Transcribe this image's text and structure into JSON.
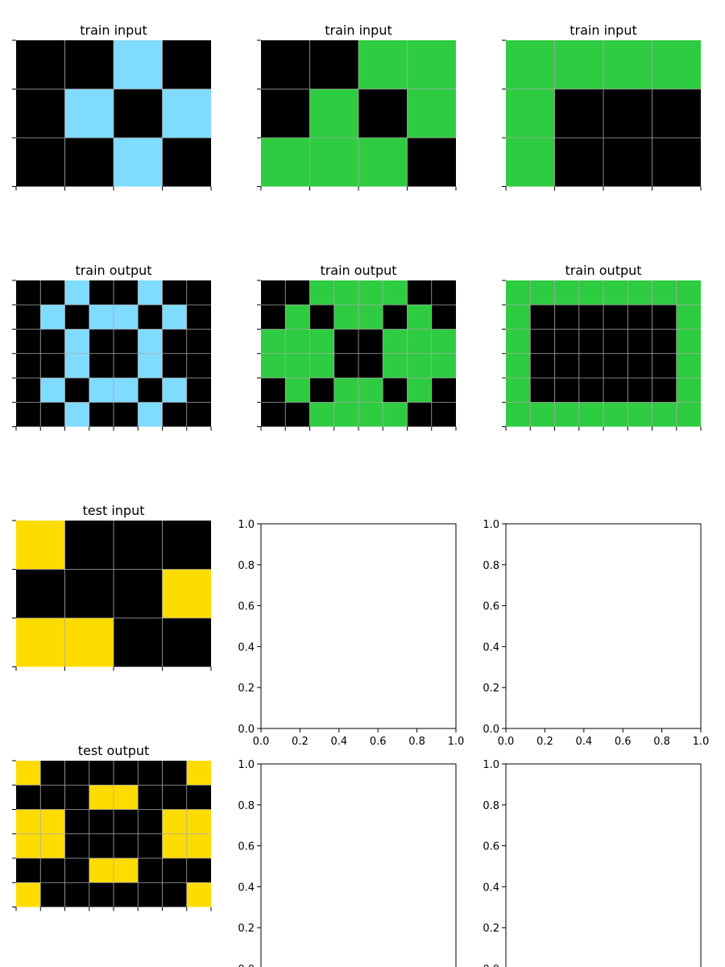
{
  "colors": {
    "0": "#000000",
    "3": "#2ECC40",
    "4": "#FFDC00",
    "8": "#7FDBFF",
    "grid": "#aaaaaa",
    "axis": "#000000",
    "background": "#ffffff"
  },
  "empty_tick_labels": [
    "0.0",
    "0.2",
    "0.4",
    "0.6",
    "0.8",
    "1.0"
  ],
  "chart_data": [
    {
      "type": "heatmap",
      "title": "train input",
      "row": 0,
      "col": 0,
      "grid": [
        [
          0,
          0,
          8,
          0
        ],
        [
          0,
          8,
          0,
          8
        ],
        [
          0,
          0,
          8,
          0
        ]
      ]
    },
    {
      "type": "heatmap",
      "title": "train input",
      "row": 0,
      "col": 1,
      "grid": [
        [
          0,
          0,
          3,
          3
        ],
        [
          0,
          3,
          0,
          3
        ],
        [
          3,
          3,
          3,
          0
        ]
      ]
    },
    {
      "type": "heatmap",
      "title": "train input",
      "row": 0,
      "col": 2,
      "grid": [
        [
          3,
          3,
          3,
          3
        ],
        [
          3,
          0,
          0,
          0
        ],
        [
          3,
          0,
          0,
          0
        ]
      ]
    },
    {
      "type": "heatmap",
      "title": "train output",
      "row": 1,
      "col": 0,
      "grid": [
        [
          0,
          0,
          8,
          0,
          0,
          8,
          0,
          0
        ],
        [
          0,
          8,
          0,
          8,
          8,
          0,
          8,
          0
        ],
        [
          0,
          0,
          8,
          0,
          0,
          8,
          0,
          0
        ],
        [
          0,
          0,
          8,
          0,
          0,
          8,
          0,
          0
        ],
        [
          0,
          8,
          0,
          8,
          8,
          0,
          8,
          0
        ],
        [
          0,
          0,
          8,
          0,
          0,
          8,
          0,
          0
        ]
      ]
    },
    {
      "type": "heatmap",
      "title": "train output",
      "row": 1,
      "col": 1,
      "grid": [
        [
          0,
          0,
          3,
          3,
          3,
          3,
          0,
          0
        ],
        [
          0,
          3,
          0,
          3,
          3,
          0,
          3,
          0
        ],
        [
          3,
          3,
          3,
          0,
          0,
          3,
          3,
          3
        ],
        [
          3,
          3,
          3,
          0,
          0,
          3,
          3,
          3
        ],
        [
          0,
          3,
          0,
          3,
          3,
          0,
          3,
          0
        ],
        [
          0,
          0,
          3,
          3,
          3,
          3,
          0,
          0
        ]
      ]
    },
    {
      "type": "heatmap",
      "title": "train output",
      "row": 1,
      "col": 2,
      "grid": [
        [
          3,
          3,
          3,
          3,
          3,
          3,
          3,
          3
        ],
        [
          3,
          0,
          0,
          0,
          0,
          0,
          0,
          3
        ],
        [
          3,
          0,
          0,
          0,
          0,
          0,
          0,
          3
        ],
        [
          3,
          0,
          0,
          0,
          0,
          0,
          0,
          3
        ],
        [
          3,
          0,
          0,
          0,
          0,
          0,
          0,
          3
        ],
        [
          3,
          3,
          3,
          3,
          3,
          3,
          3,
          3
        ]
      ]
    },
    {
      "type": "heatmap",
      "title": "test input",
      "row": 2,
      "col": 0,
      "grid": [
        [
          4,
          0,
          0,
          0
        ],
        [
          0,
          0,
          0,
          4
        ],
        [
          4,
          4,
          0,
          0
        ]
      ]
    },
    {
      "type": "empty",
      "title": "",
      "row": 2,
      "col": 1,
      "xlim": [
        0,
        1
      ],
      "ylim": [
        0,
        1
      ]
    },
    {
      "type": "empty",
      "title": "",
      "row": 2,
      "col": 2,
      "xlim": [
        0,
        1
      ],
      "ylim": [
        0,
        1
      ]
    },
    {
      "type": "heatmap",
      "title": "test output",
      "row": 3,
      "col": 0,
      "grid": [
        [
          4,
          0,
          0,
          0,
          0,
          0,
          0,
          4
        ],
        [
          0,
          0,
          0,
          4,
          4,
          0,
          0,
          0
        ],
        [
          4,
          4,
          0,
          0,
          0,
          0,
          4,
          4
        ],
        [
          4,
          4,
          0,
          0,
          0,
          0,
          4,
          4
        ],
        [
          0,
          0,
          0,
          4,
          4,
          0,
          0,
          0
        ],
        [
          4,
          0,
          0,
          0,
          0,
          0,
          0,
          4
        ]
      ]
    },
    {
      "type": "empty",
      "title": "",
      "row": 3,
      "col": 1,
      "xlim": [
        0,
        1
      ],
      "ylim": [
        0,
        1
      ]
    },
    {
      "type": "empty",
      "title": "",
      "row": 3,
      "col": 2,
      "xlim": [
        0,
        1
      ],
      "ylim": [
        0,
        1
      ]
    }
  ]
}
